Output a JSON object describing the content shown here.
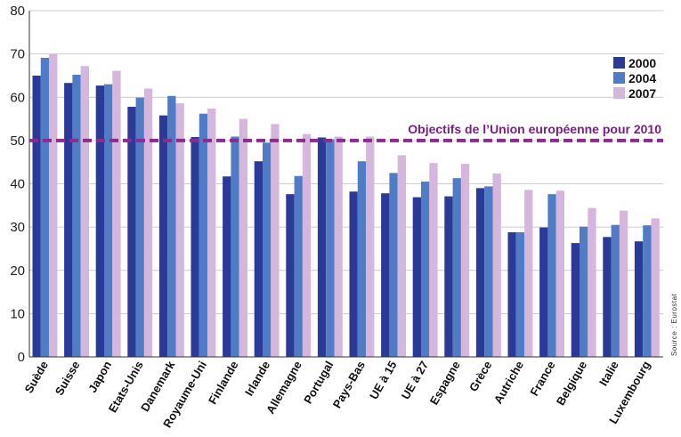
{
  "chart_data": {
    "type": "bar",
    "categories": [
      "Suède",
      "Suisse",
      "Japon",
      "Etats-Unis",
      "Danemark",
      "Royaume-Uni",
      "Finlande",
      "Irlande",
      "Allemagne",
      "Portugal",
      "Pays-Bas",
      "UE à 15",
      "UE à 27",
      "Espagne",
      "Grèce",
      "Autriche",
      "France",
      "Belgique",
      "Italie",
      "Luxembourg"
    ],
    "series": [
      {
        "name": "2000",
        "color": "#2b3a97",
        "values": [
          65,
          63.3,
          62.7,
          57.8,
          55.8,
          50.8,
          41.7,
          45.2,
          37.6,
          50.7,
          38.2,
          37.8,
          36.9,
          37.1,
          39,
          28.8,
          29.9,
          26.3,
          27.7,
          26.7
        ]
      },
      {
        "name": "2004",
        "color": "#4f7cc4",
        "values": [
          69.1,
          65.2,
          63,
          59.9,
          60.3,
          56.2,
          50.9,
          49.5,
          41.8,
          50.3,
          45.2,
          42.5,
          40.5,
          41.3,
          39.4,
          28.8,
          37.6,
          30.1,
          30.5,
          30.4
        ]
      },
      {
        "name": "2007",
        "color": "#d5b6dc",
        "values": [
          70,
          67.2,
          66.1,
          62,
          58.6,
          57.4,
          55,
          53.8,
          51.5,
          50.9,
          50.9,
          46.6,
          44.8,
          44.6,
          42.4,
          38.6,
          38.4,
          34.4,
          33.8,
          32
        ]
      }
    ],
    "ylim": [
      0,
      80
    ],
    "yticks": [
      0,
      10,
      20,
      30,
      40,
      50,
      60,
      70,
      80
    ],
    "grid": true,
    "legend": {
      "position": "top-right",
      "entries": [
        "2000",
        "2004",
        "2007"
      ]
    },
    "target_line": {
      "value": 50,
      "label": "Objectifs de l’Union européenne pour 2010",
      "color": "#8e2a8f"
    },
    "source": "Source : Eurostat"
  }
}
